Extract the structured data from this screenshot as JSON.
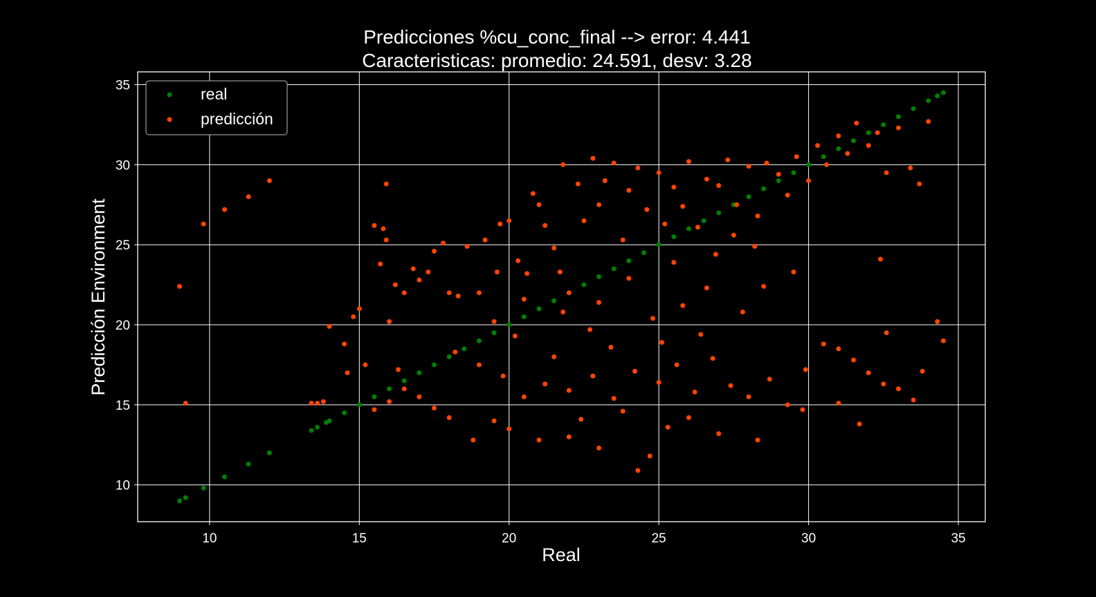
{
  "chart_data": {
    "type": "scatter",
    "title": "Predicciones %cu_conc_final --> error: 4.441",
    "subtitle": "Caracteristicas: promedio: 24.591, desv: 3.28",
    "xlabel": "Real",
    "ylabel": "Predicción Environment",
    "xlim": [
      7.6,
      35.9
    ],
    "ylim": [
      7.7,
      35.8
    ],
    "xticks": [
      10,
      15,
      20,
      25,
      30,
      35
    ],
    "yticks": [
      10,
      15,
      20,
      25,
      30,
      35
    ],
    "grid": true,
    "legend_position": "top-left",
    "background": "#000000",
    "foreground": "#ffffff",
    "series": [
      {
        "name": "real",
        "color": "#008000",
        "points": [
          [
            9.0,
            9.0
          ],
          [
            9.2,
            9.2
          ],
          [
            9.8,
            9.8
          ],
          [
            10.5,
            10.5
          ],
          [
            11.3,
            11.3
          ],
          [
            12.0,
            12.0
          ],
          [
            13.4,
            13.4
          ],
          [
            13.6,
            13.6
          ],
          [
            13.9,
            13.9
          ],
          [
            14.0,
            14.0
          ],
          [
            14.5,
            14.5
          ],
          [
            15.0,
            15.0
          ],
          [
            15.5,
            15.5
          ],
          [
            16.0,
            16.0
          ],
          [
            16.5,
            16.5
          ],
          [
            17.0,
            17.0
          ],
          [
            17.5,
            17.5
          ],
          [
            18.0,
            18.0
          ],
          [
            18.5,
            18.5
          ],
          [
            19.0,
            19.0
          ],
          [
            19.5,
            19.5
          ],
          [
            20.0,
            20.0
          ],
          [
            20.5,
            20.5
          ],
          [
            21.0,
            21.0
          ],
          [
            21.5,
            21.5
          ],
          [
            22.0,
            22.0
          ],
          [
            22.5,
            22.5
          ],
          [
            23.0,
            23.0
          ],
          [
            23.5,
            23.5
          ],
          [
            24.0,
            24.0
          ],
          [
            24.5,
            24.5
          ],
          [
            25.0,
            25.0
          ],
          [
            25.5,
            25.5
          ],
          [
            26.0,
            26.0
          ],
          [
            26.5,
            26.5
          ],
          [
            27.0,
            27.0
          ],
          [
            27.5,
            27.5
          ],
          [
            28.0,
            28.0
          ],
          [
            28.5,
            28.5
          ],
          [
            29.0,
            29.0
          ],
          [
            29.5,
            29.5
          ],
          [
            30.0,
            30.0
          ],
          [
            30.5,
            30.5
          ],
          [
            31.0,
            31.0
          ],
          [
            31.5,
            31.5
          ],
          [
            32.0,
            32.0
          ],
          [
            32.5,
            32.5
          ],
          [
            33.0,
            33.0
          ],
          [
            33.5,
            33.5
          ],
          [
            34.0,
            34.0
          ],
          [
            34.3,
            34.3
          ],
          [
            34.5,
            34.5
          ]
        ]
      },
      {
        "name": "predicción",
        "color": "#ff4500",
        "points": [
          [
            9.0,
            22.4
          ],
          [
            9.2,
            15.1
          ],
          [
            9.8,
            26.3
          ],
          [
            10.5,
            27.2
          ],
          [
            11.3,
            28.0
          ],
          [
            12.0,
            29.0
          ],
          [
            13.4,
            15.1
          ],
          [
            13.6,
            15.1
          ],
          [
            13.8,
            15.2
          ],
          [
            14.0,
            19.9
          ],
          [
            14.5,
            18.8
          ],
          [
            14.6,
            17.0
          ],
          [
            14.8,
            20.5
          ],
          [
            15.0,
            21.0
          ],
          [
            15.2,
            17.5
          ],
          [
            15.5,
            26.2
          ],
          [
            15.7,
            23.8
          ],
          [
            15.8,
            26.0
          ],
          [
            15.9,
            28.8
          ],
          [
            15.9,
            25.3
          ],
          [
            16.0,
            20.2
          ],
          [
            16.2,
            22.5
          ],
          [
            16.5,
            22.0
          ],
          [
            16.8,
            23.5
          ],
          [
            17.0,
            22.8
          ],
          [
            17.3,
            23.3
          ],
          [
            17.5,
            24.6
          ],
          [
            17.8,
            25.1
          ],
          [
            18.0,
            22.0
          ],
          [
            18.3,
            21.8
          ],
          [
            18.6,
            24.9
          ],
          [
            19.0,
            22.0
          ],
          [
            19.2,
            25.3
          ],
          [
            19.5,
            20.2
          ],
          [
            19.7,
            26.3
          ],
          [
            20.0,
            26.5
          ],
          [
            20.3,
            24.0
          ],
          [
            20.6,
            23.2
          ],
          [
            20.8,
            28.2
          ],
          [
            21.0,
            27.5
          ],
          [
            21.2,
            26.2
          ],
          [
            21.5,
            24.8
          ],
          [
            21.7,
            23.3
          ],
          [
            21.8,
            30.0
          ],
          [
            22.0,
            22.0
          ],
          [
            22.3,
            28.8
          ],
          [
            22.5,
            26.5
          ],
          [
            22.8,
            30.4
          ],
          [
            23.0,
            27.5
          ],
          [
            23.2,
            29.0
          ],
          [
            23.5,
            30.1
          ],
          [
            23.8,
            25.3
          ],
          [
            24.0,
            28.4
          ],
          [
            24.3,
            29.8
          ],
          [
            24.6,
            27.2
          ],
          [
            25.0,
            29.5
          ],
          [
            25.2,
            26.3
          ],
          [
            25.5,
            28.6
          ],
          [
            25.8,
            27.4
          ],
          [
            26.0,
            30.2
          ],
          [
            26.3,
            26.1
          ],
          [
            26.6,
            29.1
          ],
          [
            27.0,
            28.7
          ],
          [
            27.3,
            30.3
          ],
          [
            27.6,
            27.5
          ],
          [
            28.0,
            29.9
          ],
          [
            28.3,
            26.8
          ],
          [
            28.6,
            30.1
          ],
          [
            29.0,
            29.4
          ],
          [
            29.3,
            28.1
          ],
          [
            29.6,
            30.5
          ],
          [
            30.0,
            29.0
          ],
          [
            30.3,
            31.2
          ],
          [
            30.6,
            30.0
          ],
          [
            31.0,
            31.8
          ],
          [
            31.3,
            30.7
          ],
          [
            31.6,
            32.6
          ],
          [
            32.0,
            31.2
          ],
          [
            32.3,
            32.0
          ],
          [
            32.6,
            29.5
          ],
          [
            33.0,
            32.3
          ],
          [
            33.4,
            29.8
          ],
          [
            33.7,
            28.8
          ],
          [
            34.0,
            32.7
          ],
          [
            32.4,
            24.1
          ],
          [
            32.6,
            19.5
          ],
          [
            34.3,
            20.2
          ],
          [
            34.5,
            19.0
          ],
          [
            30.5,
            18.8
          ],
          [
            31.0,
            18.5
          ],
          [
            31.5,
            17.8
          ],
          [
            32.0,
            17.0
          ],
          [
            32.5,
            16.3
          ],
          [
            33.0,
            16.0
          ],
          [
            33.5,
            15.3
          ],
          [
            33.8,
            17.1
          ],
          [
            31.0,
            15.1
          ],
          [
            31.7,
            13.8
          ],
          [
            29.8,
            14.7
          ],
          [
            28.5,
            22.4
          ],
          [
            29.5,
            23.3
          ],
          [
            27.8,
            20.8
          ],
          [
            24.3,
            10.9
          ],
          [
            24.7,
            11.8
          ],
          [
            23.0,
            12.3
          ],
          [
            22.0,
            13.0
          ],
          [
            21.0,
            12.8
          ],
          [
            20.0,
            13.5
          ],
          [
            19.5,
            14.0
          ],
          [
            18.8,
            12.8
          ],
          [
            18.0,
            14.2
          ],
          [
            17.5,
            14.8
          ],
          [
            17.0,
            15.5
          ],
          [
            16.5,
            16.0
          ],
          [
            16.0,
            15.2
          ],
          [
            15.5,
            14.7
          ],
          [
            16.3,
            17.2
          ],
          [
            18.2,
            18.3
          ],
          [
            19.0,
            17.5
          ],
          [
            19.8,
            16.8
          ],
          [
            20.5,
            15.5
          ],
          [
            21.2,
            16.3
          ],
          [
            22.0,
            15.9
          ],
          [
            22.8,
            16.8
          ],
          [
            23.5,
            15.4
          ],
          [
            24.2,
            17.1
          ],
          [
            25.0,
            16.4
          ],
          [
            25.6,
            17.5
          ],
          [
            26.2,
            15.8
          ],
          [
            26.8,
            17.9
          ],
          [
            27.4,
            16.2
          ],
          [
            28.0,
            15.5
          ],
          [
            28.7,
            16.6
          ],
          [
            29.3,
            15.0
          ],
          [
            29.9,
            17.2
          ],
          [
            26.0,
            14.2
          ],
          [
            25.3,
            13.6
          ],
          [
            27.0,
            13.2
          ],
          [
            28.3,
            12.8
          ],
          [
            23.8,
            14.6
          ],
          [
            22.4,
            14.1
          ],
          [
            21.5,
            18.0
          ],
          [
            20.2,
            19.3
          ],
          [
            22.7,
            19.7
          ],
          [
            24.8,
            20.4
          ],
          [
            25.8,
            21.2
          ],
          [
            26.6,
            22.3
          ],
          [
            24.0,
            22.9
          ],
          [
            23.0,
            21.4
          ],
          [
            21.8,
            20.8
          ],
          [
            20.5,
            21.6
          ],
          [
            19.6,
            23.3
          ],
          [
            25.5,
            23.9
          ],
          [
            26.9,
            24.4
          ],
          [
            27.5,
            25.6
          ],
          [
            28.2,
            24.9
          ],
          [
            25.1,
            18.9
          ],
          [
            26.4,
            19.4
          ],
          [
            23.4,
            18.6
          ]
        ]
      }
    ]
  }
}
